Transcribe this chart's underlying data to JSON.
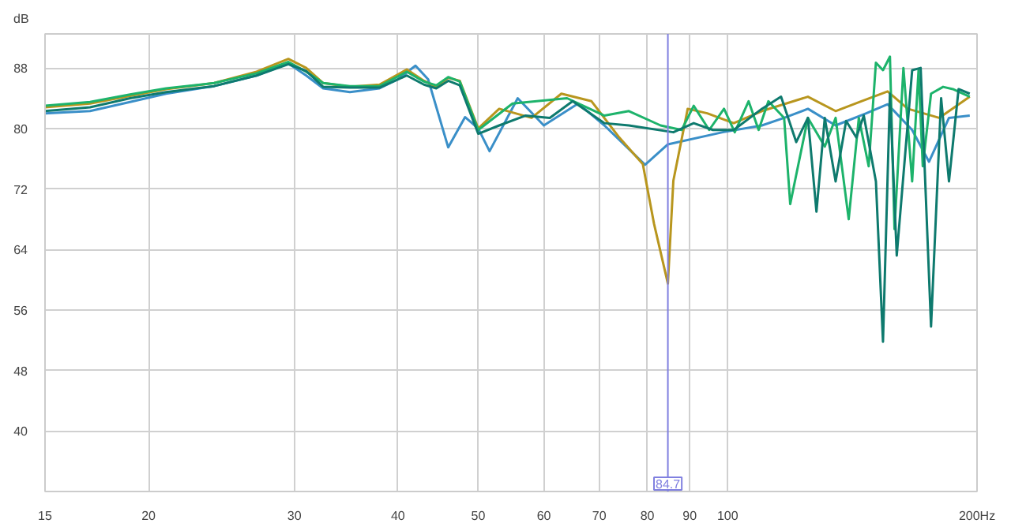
{
  "chart_data": {
    "type": "line",
    "ylabel": "dB",
    "log": "x",
    "grid": true,
    "marker": "none",
    "line_style": "solid",
    "xlim": [
      15,
      200
    ],
    "ylim": [
      32,
      92.5
    ],
    "xticks": [
      15,
      20,
      30,
      40,
      50,
      60,
      70,
      80,
      90,
      100,
      {
        "value": 200,
        "label": "200Hz"
      }
    ],
    "yticks": [
      40,
      48,
      56,
      64,
      72,
      80,
      88
    ],
    "ref_lines": [
      {
        "axis": "x",
        "value": 84.7,
        "label": "84.7",
        "color": "#8080e0"
      }
    ],
    "series": [
      {
        "color": "#3a8fc8",
        "x": [
          15,
          17,
          19,
          21,
          24,
          27,
          29.5,
          31,
          32.5,
          35,
          38,
          40,
          42,
          43.5,
          46,
          48.2,
          50,
          51.6,
          55.8,
          60,
          66,
          71,
          79.5,
          84.7,
          98.6,
          110,
          117,
          125,
          135,
          147,
          156,
          167,
          175,
          185,
          196
        ],
        "values": [
          82,
          82.3,
          83.5,
          84.6,
          85.6,
          87,
          88.6,
          87,
          85.3,
          84.8,
          85.3,
          86.5,
          88.3,
          86.5,
          77.5,
          81.5,
          80,
          77,
          84,
          80.4,
          83.3,
          80.4,
          75.2,
          77.9,
          79.5,
          80.4,
          81.4,
          82.6,
          80.4,
          82,
          83.2,
          79.8,
          75.6,
          81.4,
          81.7
        ]
      },
      {
        "color": "#b8961e",
        "x": [
          15,
          17,
          19,
          21,
          24,
          27,
          29.5,
          31,
          32.5,
          35,
          38,
          41,
          43,
          44.5,
          46,
          47.5,
          50,
          53,
          58,
          63,
          68.5,
          74,
          79,
          81.5,
          84.7,
          86,
          89.5,
          94.5,
          101.7,
          110,
          125,
          135,
          145,
          156,
          165,
          180,
          196
        ],
        "values": [
          82.8,
          83.3,
          84.3,
          85.2,
          86,
          87.5,
          89.2,
          88,
          86,
          85.5,
          85.8,
          87.8,
          86.3,
          85.5,
          86.7,
          86.3,
          80,
          82.6,
          81.4,
          84.6,
          83.6,
          78.8,
          75.3,
          67.4,
          59.5,
          73.1,
          82.6,
          82,
          80.7,
          82.3,
          84.2,
          82.3,
          83.6,
          84.9,
          82.6,
          81.4,
          84.2
        ]
      },
      {
        "color": "#1db36b",
        "x": [
          15,
          17,
          19,
          21,
          24,
          27,
          29.5,
          31,
          32.5,
          35,
          38,
          41,
          43,
          44.5,
          46,
          47.5,
          50,
          55,
          64,
          71,
          76,
          83,
          88,
          91,
          95,
          99,
          102,
          106,
          109,
          112,
          117,
          119,
          125,
          131,
          135,
          140,
          144,
          148,
          151,
          154,
          157,
          159,
          163,
          167,
          170,
          172,
          176,
          182,
          187,
          196
        ],
        "values": [
          83,
          83.5,
          84.5,
          85.3,
          86,
          87.3,
          88.8,
          87.5,
          86,
          85.6,
          85.6,
          87.5,
          86.2,
          85.7,
          86.8,
          86.2,
          79.8,
          83.3,
          84,
          81.7,
          82.3,
          80.4,
          79.8,
          83,
          79.8,
          82.6,
          79.5,
          83.6,
          79.8,
          83.6,
          81.4,
          70,
          81.4,
          77.6,
          81.4,
          68,
          81.4,
          75,
          88.7,
          87.7,
          89.5,
          66.7,
          88,
          73,
          87.7,
          75,
          84.6,
          85.5,
          85.2,
          84.2
        ]
      },
      {
        "color": "#0e7a6e",
        "x": [
          15,
          17,
          19,
          21,
          24,
          27,
          29.5,
          31,
          32.5,
          35,
          38,
          41,
          43,
          44.5,
          46,
          47.5,
          50,
          53,
          57,
          61,
          65,
          71,
          76,
          86,
          91,
          96,
          101.7,
          110,
          116,
          121,
          125,
          128,
          131,
          135,
          139,
          143,
          146,
          151,
          154,
          157,
          160,
          167,
          171,
          176,
          181,
          185,
          190,
          196
        ],
        "values": [
          82.3,
          82.8,
          84,
          84.8,
          85.6,
          87,
          88.5,
          87.6,
          85.5,
          85.4,
          85.4,
          87,
          85.8,
          85.3,
          86.3,
          85.7,
          79.3,
          80.4,
          81.7,
          81.4,
          83.6,
          80.7,
          80.4,
          79.5,
          80.7,
          79.8,
          79.8,
          82.6,
          84.2,
          78.2,
          81.4,
          69,
          81.4,
          73,
          81,
          78.8,
          81.7,
          73,
          51.8,
          84.6,
          63.2,
          87.7,
          88,
          53.8,
          84,
          73,
          85.2,
          84.6
        ]
      }
    ]
  }
}
